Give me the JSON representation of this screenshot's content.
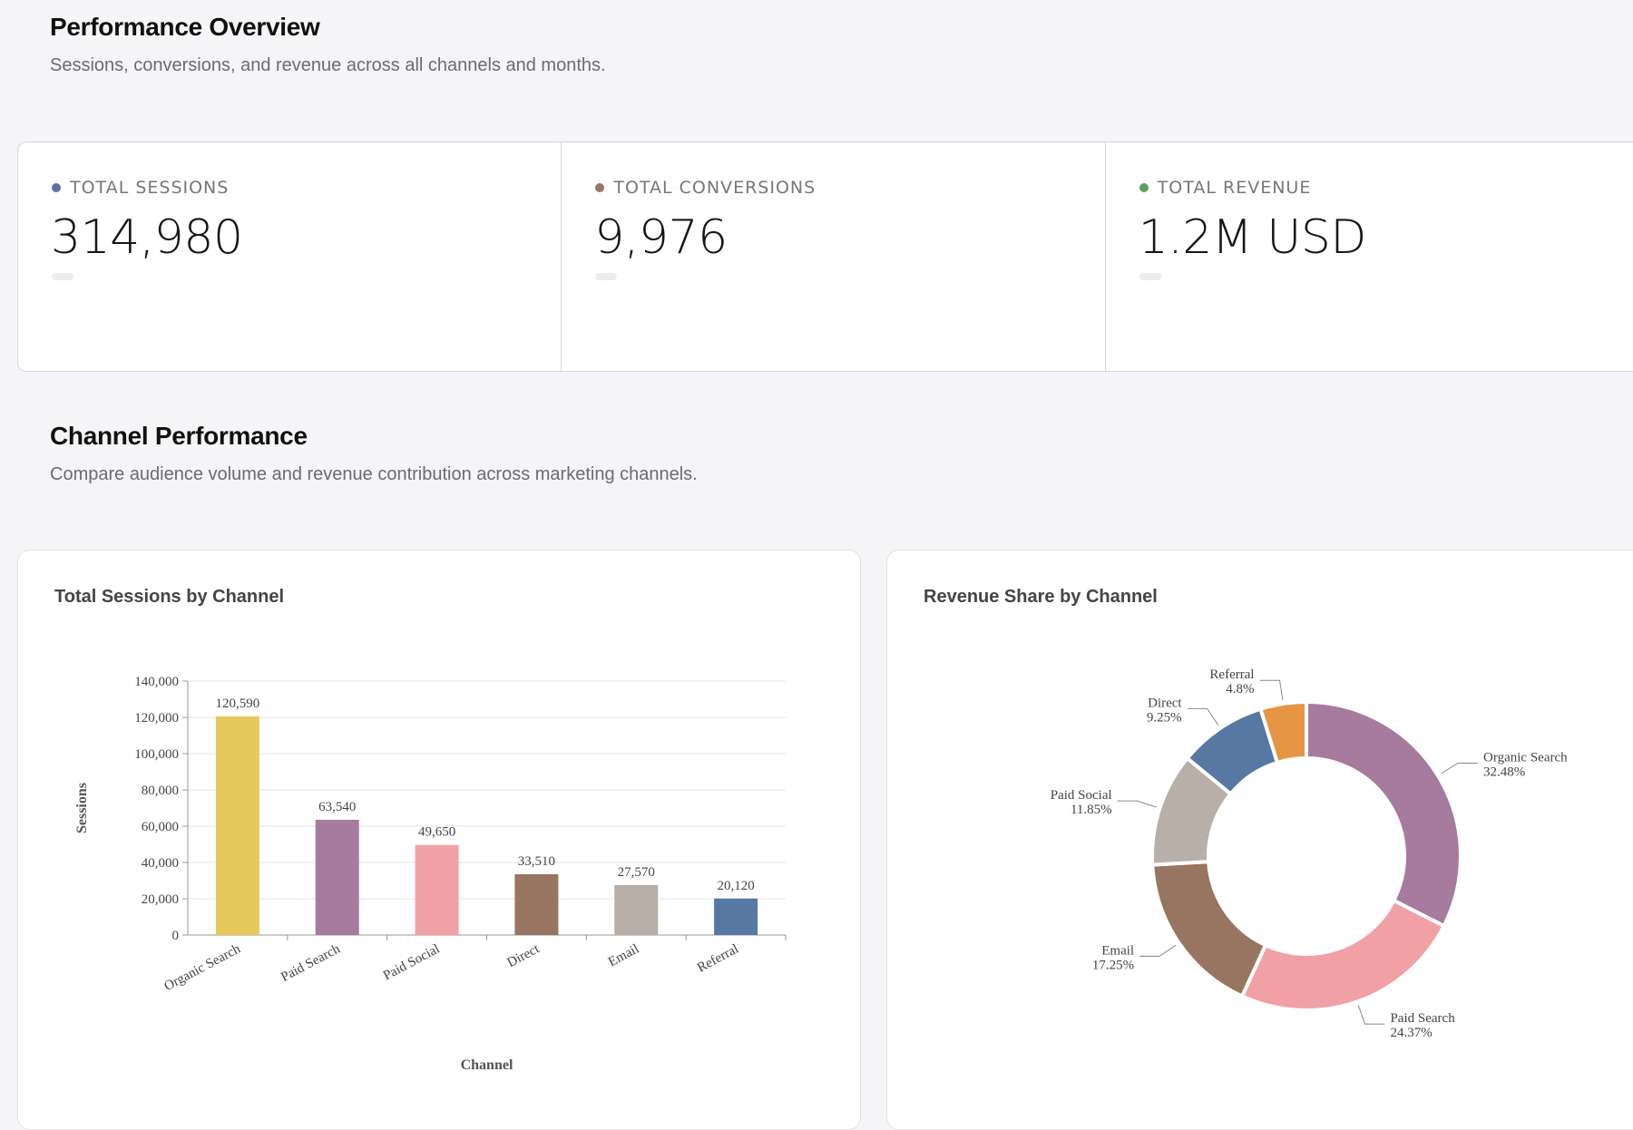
{
  "header": {
    "title": "Performance Overview",
    "subtitle": "Sessions, conversions, and revenue across all channels and months."
  },
  "kpis": [
    {
      "label": "TOTAL SESSIONS",
      "value": "314,980",
      "dot_color": "#5a73a3"
    },
    {
      "label": "TOTAL CONVERSIONS",
      "value": "9,976",
      "dot_color": "#9a7660"
    },
    {
      "label": "TOTAL REVENUE",
      "value": "1.2M USD",
      "dot_color": "#5f9e58"
    }
  ],
  "channel_section": {
    "title": "Channel Performance",
    "subtitle": "Compare audience volume and revenue contribution across marketing channels."
  },
  "bar_chart": {
    "title": "Total Sessions by Channel"
  },
  "donut_chart": {
    "title": "Revenue Share by Channel"
  },
  "chart_data": [
    {
      "type": "bar",
      "title": "Total Sessions by Channel",
      "xlabel": "Channel",
      "ylabel": "Sessions",
      "categories": [
        "Organic Search",
        "Paid Search",
        "Paid Social",
        "Direct",
        "Email",
        "Referral"
      ],
      "values": [
        120590,
        63540,
        49650,
        33510,
        27570,
        20120
      ],
      "value_labels": [
        "120,590",
        "63,540",
        "49,650",
        "33,510",
        "27,570",
        "20,120"
      ],
      "colors": [
        "#e6c95c",
        "#a67b9d",
        "#f1a1a6",
        "#987560",
        "#b9afa9",
        "#5878a4"
      ],
      "ylim": [
        0,
        140000
      ],
      "yticks": [
        0,
        20000,
        40000,
        60000,
        80000,
        100000,
        120000,
        140000
      ],
      "ytick_labels": [
        "0",
        "20,000",
        "40,000",
        "60,000",
        "80,000",
        "100,000",
        "120,000",
        "140,000"
      ],
      "grid": true
    },
    {
      "type": "pie",
      "title": "Revenue Share by Channel",
      "donut": true,
      "slices": [
        {
          "label": "Organic Search",
          "value": 32.48,
          "pct": "32.48%",
          "color": "#a67b9d"
        },
        {
          "label": "Paid Search",
          "value": 24.37,
          "pct": "24.37%",
          "color": "#f1a1a6"
        },
        {
          "label": "Email",
          "value": 17.25,
          "pct": "17.25%",
          "color": "#987560"
        },
        {
          "label": "Paid Social",
          "value": 11.85,
          "pct": "11.85%",
          "color": "#b9afa9"
        },
        {
          "label": "Direct",
          "value": 9.25,
          "pct": "9.25%",
          "color": "#5878a4"
        },
        {
          "label": "Referral",
          "value": 4.8,
          "pct": "4.8%",
          "color": "#e69544"
        }
      ]
    }
  ]
}
